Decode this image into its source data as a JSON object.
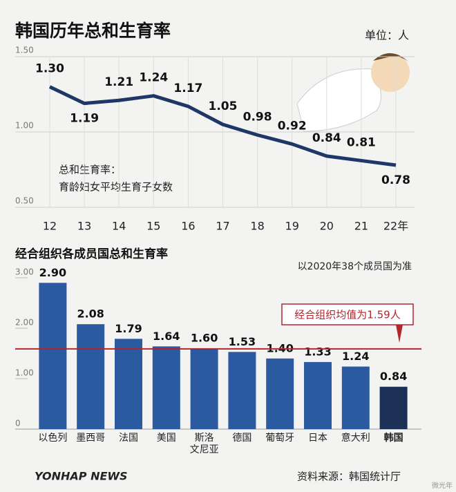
{
  "chart_data": [
    {
      "type": "line",
      "title": "韩国历年总和生育率",
      "unit": "单位：人",
      "annotation": [
        "总和生育率：",
        "育龄妇女平均生育子女数"
      ],
      "categories": [
        "12",
        "13",
        "14",
        "15",
        "16",
        "17",
        "18",
        "19",
        "20",
        "21",
        "22年"
      ],
      "values": [
        1.3,
        1.19,
        1.21,
        1.24,
        1.17,
        1.05,
        0.98,
        0.92,
        0.84,
        0.81,
        0.78
      ],
      "value_labels": [
        "1.30",
        "1.19",
        "1.21",
        "1.24",
        "1.17",
        "1.05",
        "0.98",
        "0.92",
        "0.84",
        "0.81",
        "0.78"
      ],
      "color": "#1e3766",
      "ylim": [
        0.5,
        1.5
      ],
      "yticks": [
        {
          "value": 0.5,
          "label": "0.50"
        },
        {
          "value": 1,
          "label": "1.00"
        },
        {
          "value": 1.5,
          "label": "1.50"
        }
      ],
      "grid": true
    },
    {
      "type": "bar",
      "title": "经合组织各成员国总和生育率",
      "subtitle": "以2020年38个成员国为准",
      "categories": [
        "以色列",
        "墨西哥",
        "法国",
        "美国",
        "斯洛\n文尼亚",
        "德国",
        "葡萄牙",
        "日本",
        "意大利",
        "韩国"
      ],
      "values": [
        2.9,
        2.08,
        1.79,
        1.64,
        1.6,
        1.53,
        1.4,
        1.33,
        1.24,
        0.84
      ],
      "value_labels": [
        "2.90",
        "2.08",
        "1.79",
        "1.64",
        "1.60",
        "1.53",
        "1.40",
        "1.33",
        "1.24",
        "0.84"
      ],
      "colors": [
        "#2c5aa0",
        "#2c5aa0",
        "#2c5aa0",
        "#2c5aa0",
        "#2c5aa0",
        "#2c5aa0",
        "#2c5aa0",
        "#2c5aa0",
        "#2c5aa0",
        "#1b2f57"
      ],
      "reference_line": {
        "value": 1.59,
        "label": "经合组织均值为1.59人",
        "color": "#b3262c"
      },
      "ylim": [
        0,
        3
      ],
      "yticks": [
        0,
        {
          "value": 1,
          "label": "1.00"
        },
        {
          "value": 2,
          "label": "2.00"
        },
        {
          "value": 3,
          "label": "3.00"
        }
      ],
      "grid": false
    }
  ],
  "footer": {
    "logo": "YONHAP NEWS",
    "source": "资料来源：韩国统计厅",
    "watermark": "微光年"
  }
}
